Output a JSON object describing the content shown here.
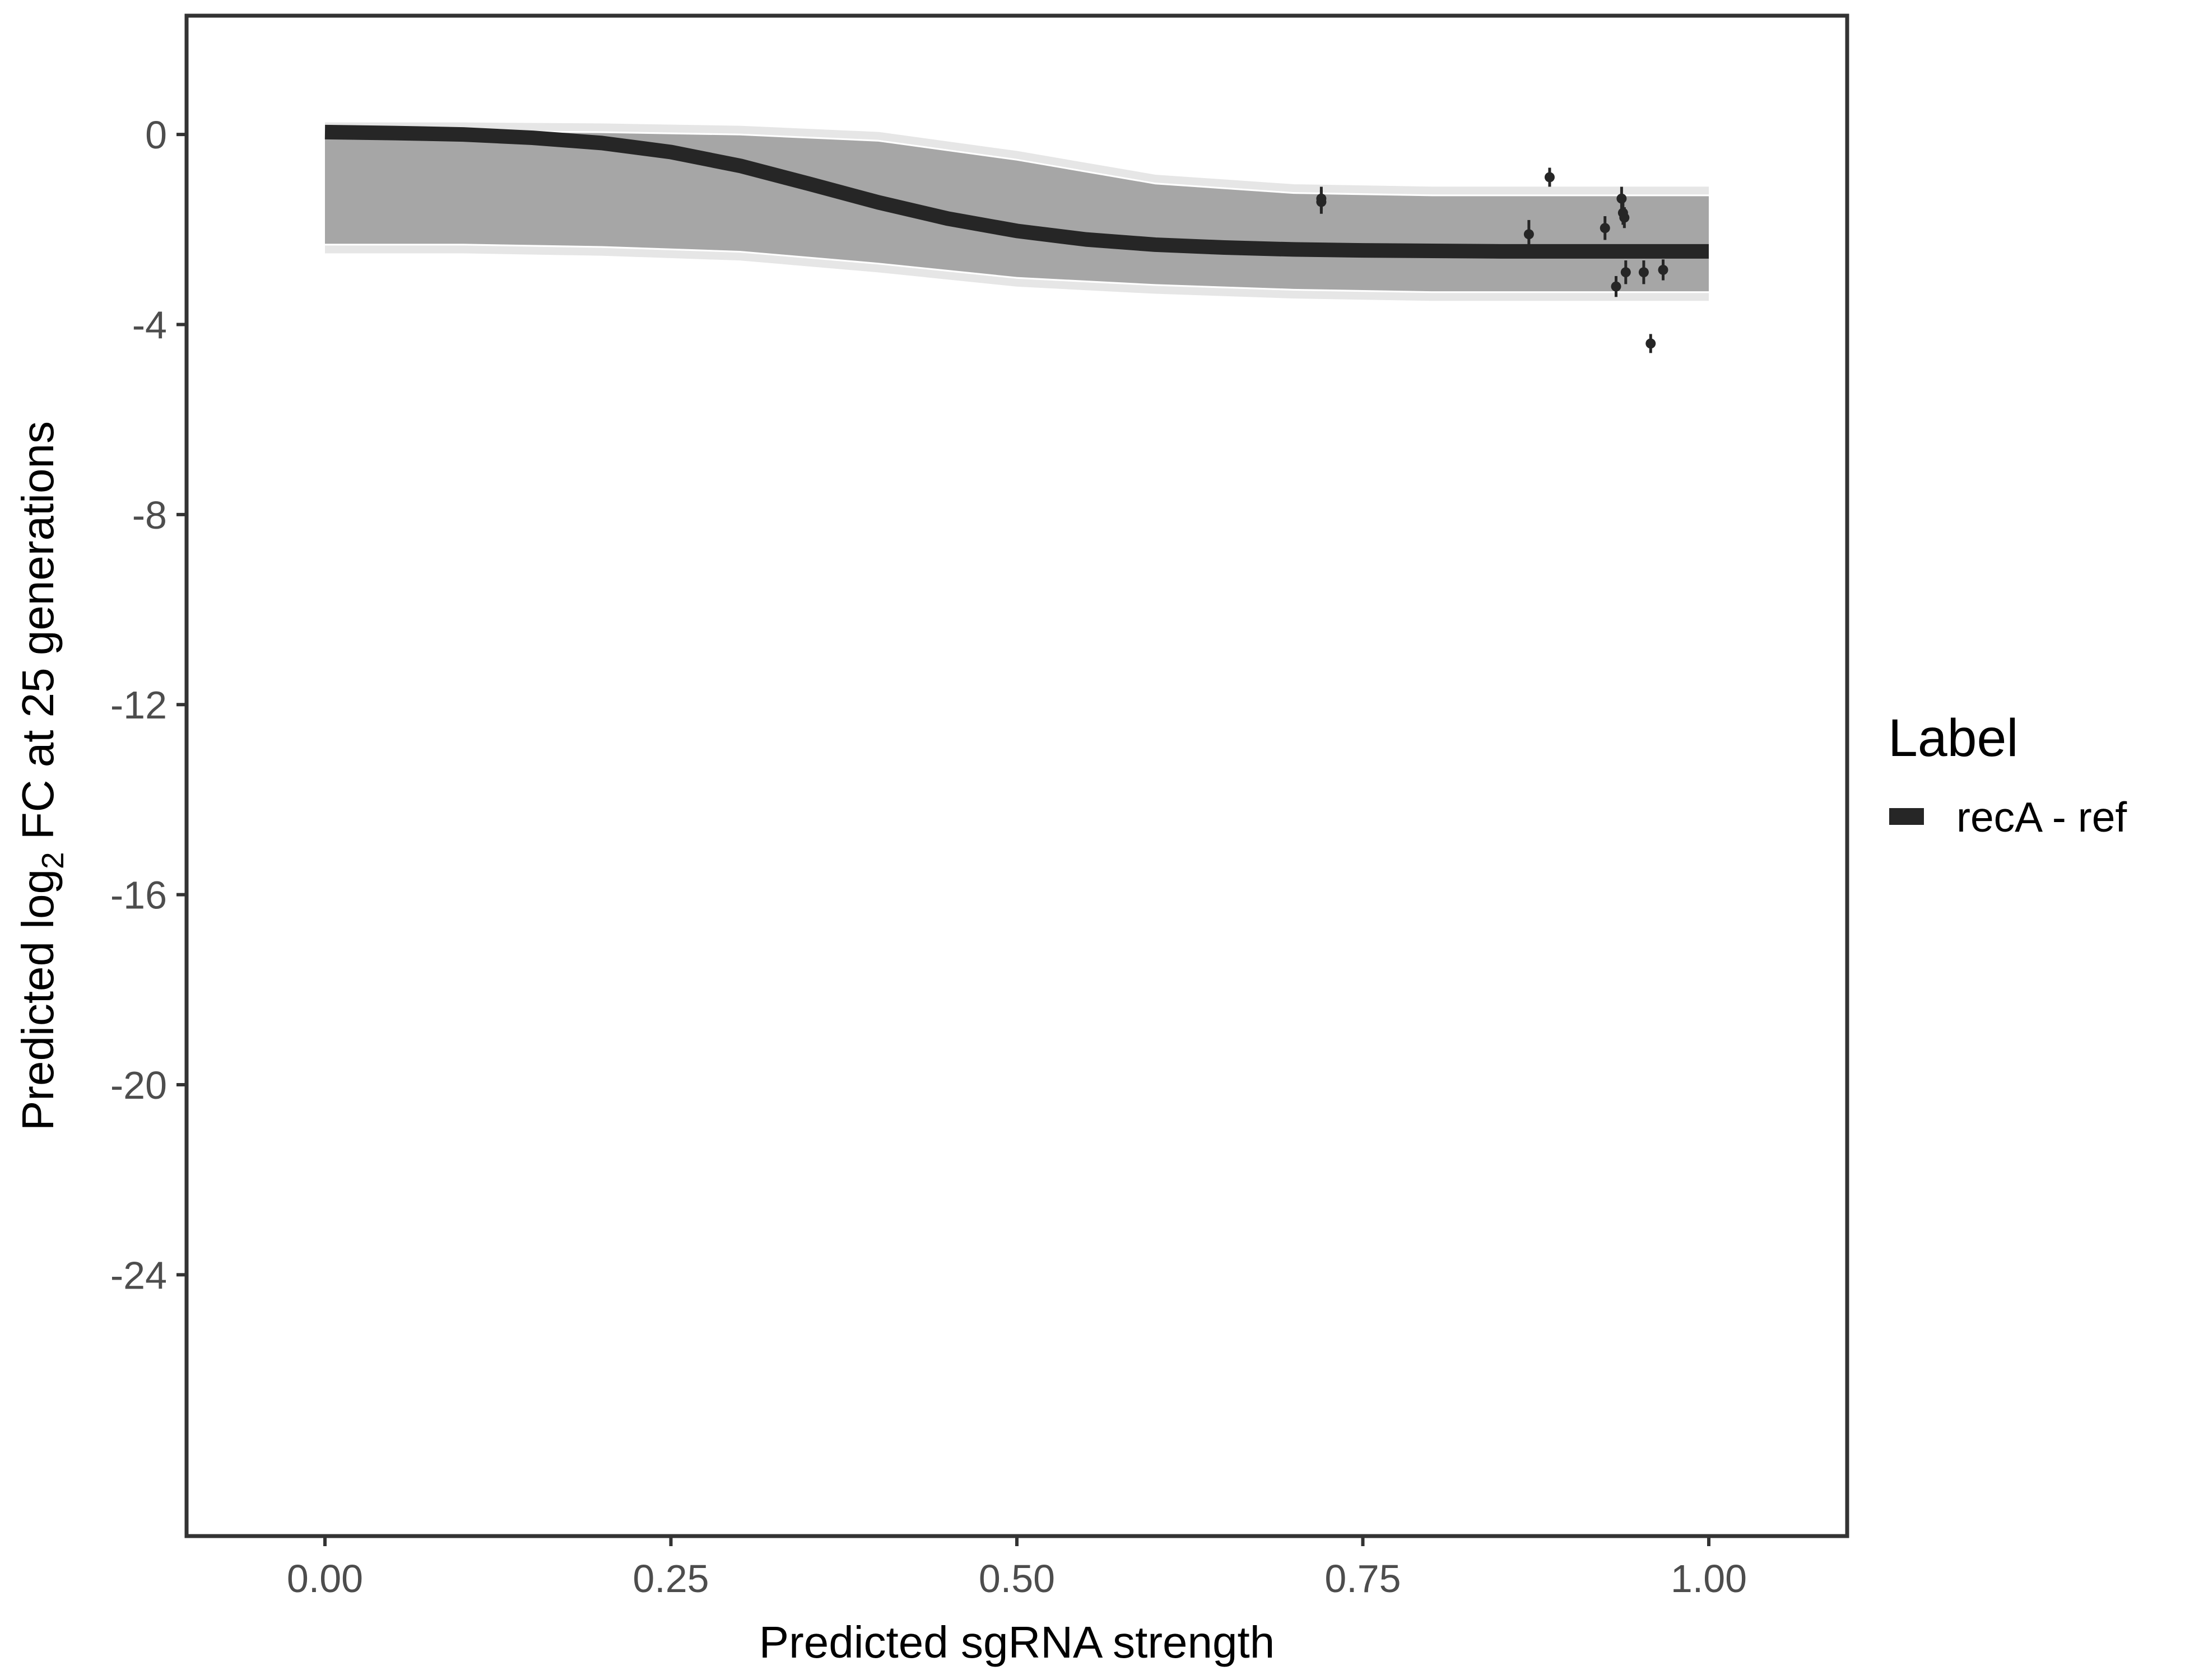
{
  "chart_data": {
    "type": "line",
    "xlabel": "Predicted sgRNA strength",
    "ylabel_prefix": "Predicted  log",
    "ylabel_subscript": "2",
    "ylabel_suffix": " FC at 25 generations",
    "xlim": [
      -0.1,
      1.1
    ],
    "ylim": [
      -29.5,
      2.5
    ],
    "x_ticks": [
      0,
      0.25,
      0.5,
      0.75,
      1
    ],
    "x_tick_labels": [
      "0.00",
      "0.25",
      "0.50",
      "0.75",
      "1.00"
    ],
    "y_ticks": [
      0,
      -4,
      -8,
      -12,
      -16,
      -20,
      -24
    ],
    "y_tick_labels": [
      "0",
      "-4",
      "-8",
      "-12",
      "-16",
      "-20",
      "-24"
    ],
    "grid": false,
    "legend": {
      "title": "Label",
      "position": "right",
      "entries": [
        {
          "label": "recA - ref",
          "color": "#262626"
        }
      ]
    },
    "series": [
      {
        "name": "recA - ref",
        "color": "#262626",
        "x": [
          0,
          0.05,
          0.1,
          0.15,
          0.2,
          0.25,
          0.3,
          0.35,
          0.4,
          0.45,
          0.5,
          0.55,
          0.6,
          0.65,
          0.7,
          0.75,
          0.8,
          0.85,
          0.9,
          0.95,
          1.0
        ],
        "y": [
          0.05,
          0.03,
          0.0,
          -0.07,
          -0.18,
          -0.37,
          -0.66,
          -1.04,
          -1.43,
          -1.77,
          -2.03,
          -2.21,
          -2.32,
          -2.38,
          -2.42,
          -2.44,
          -2.45,
          -2.46,
          -2.46,
          -2.46,
          -2.46
        ]
      }
    ],
    "uncertainty_band": {
      "color": "#a6a6a6",
      "x": [
        0,
        0.1,
        0.2,
        0.3,
        0.4,
        0.5,
        0.6,
        0.7,
        0.8,
        0.9,
        1.0
      ],
      "upper": [
        0.05,
        0.05,
        0.03,
        -0.02,
        -0.15,
        -0.55,
        -1.05,
        -1.25,
        -1.3,
        -1.3,
        -1.3
      ],
      "lower": [
        -2.3,
        -2.3,
        -2.35,
        -2.45,
        -2.7,
        -3.0,
        -3.15,
        -3.25,
        -3.3,
        -3.3,
        -3.3
      ]
    },
    "observations": [
      {
        "x": 0.72,
        "y": -1.35,
        "err": 0.25
      },
      {
        "x": 0.72,
        "y": -1.42,
        "err": 0.25
      },
      {
        "x": 0.87,
        "y": -2.1,
        "err": 0.3
      },
      {
        "x": 0.885,
        "y": -0.9,
        "err": 0.2
      },
      {
        "x": 0.925,
        "y": -1.97,
        "err": 0.25
      },
      {
        "x": 0.933,
        "y": -3.2,
        "err": 0.22
      },
      {
        "x": 0.937,
        "y": -1.35,
        "err": 0.25
      },
      {
        "x": 0.938,
        "y": -1.65,
        "err": 0.25
      },
      {
        "x": 0.939,
        "y": -1.75,
        "err": 0.22
      },
      {
        "x": 0.94,
        "y": -2.9,
        "err": 0.25
      },
      {
        "x": 0.953,
        "y": -2.9,
        "err": 0.25
      },
      {
        "x": 0.958,
        "y": -4.4,
        "err": 0.2
      },
      {
        "x": 0.967,
        "y": -2.85,
        "err": 0.22
      }
    ]
  }
}
